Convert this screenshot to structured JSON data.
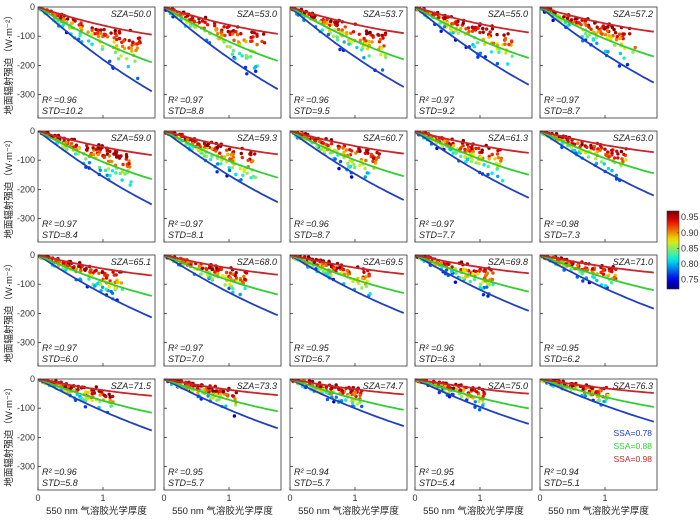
{
  "chart_data": {
    "type": "scatter",
    "layout": "small-multiples-4x5",
    "xlabel": "550 nm 气溶胶光学厚度",
    "ylabel": "地面辐射强迫（W·m⁻²）",
    "xlim": [
      0,
      1.8
    ],
    "ylim": [
      -380,
      0
    ],
    "xticks": [
      0,
      1
    ],
    "yticks": [
      0,
      -100,
      -200,
      -300
    ],
    "grid": false,
    "colorbar": {
      "min": 0.72,
      "max": 0.97,
      "ticks": [
        "0.95",
        "0.90",
        "0.85",
        "0.80",
        "0.75"
      ],
      "colormap": "jet",
      "placement": "right"
    },
    "reference_lines": [
      {
        "name": "SSA=0.78",
        "color": "#1f3fbf"
      },
      {
        "name": "SSA=0.88",
        "color": "#2fcf2f"
      },
      {
        "name": "SSA=0.98",
        "color": "#c8262a"
      }
    ],
    "panels": [
      {
        "sza": "50.0",
        "r2": "0.96",
        "std": "10.2"
      },
      {
        "sza": "53.0",
        "r2": "0.97",
        "std": "8.8"
      },
      {
        "sza": "53.7",
        "r2": "0.96",
        "std": "9.5"
      },
      {
        "sza": "55.0",
        "r2": "0.97",
        "std": "9.2"
      },
      {
        "sza": "57.2",
        "r2": "0.97",
        "std": "8.7"
      },
      {
        "sza": "59.0",
        "r2": "0.97",
        "std": "8.4"
      },
      {
        "sza": "59.3",
        "r2": "0.97",
        "std": "8.1"
      },
      {
        "sza": "60.7",
        "r2": "0.96",
        "std": "8.7"
      },
      {
        "sza": "61.3",
        "r2": "0.97",
        "std": "7.7"
      },
      {
        "sza": "63.0",
        "r2": "0.98",
        "std": "7.3"
      },
      {
        "sza": "65.1",
        "r2": "0.97",
        "std": "6.0"
      },
      {
        "sza": "68.0",
        "r2": "0.97",
        "std": "7.0"
      },
      {
        "sza": "69.5",
        "r2": "0.95",
        "std": "6.7"
      },
      {
        "sza": "69.8",
        "r2": "0.96",
        "std": "6.3"
      },
      {
        "sza": "71.0",
        "r2": "0.95",
        "std": "6.2"
      },
      {
        "sza": "71.5",
        "r2": "0.96",
        "std": "5.8"
      },
      {
        "sza": "73.3",
        "r2": "0.95",
        "std": "5.7"
      },
      {
        "sza": "74.7",
        "r2": "0.94",
        "std": "5.7"
      },
      {
        "sza": "75.0",
        "r2": "0.95",
        "std": "5.4"
      },
      {
        "sza": "76.3",
        "r2": "0.94",
        "std": "5.1"
      }
    ]
  }
}
